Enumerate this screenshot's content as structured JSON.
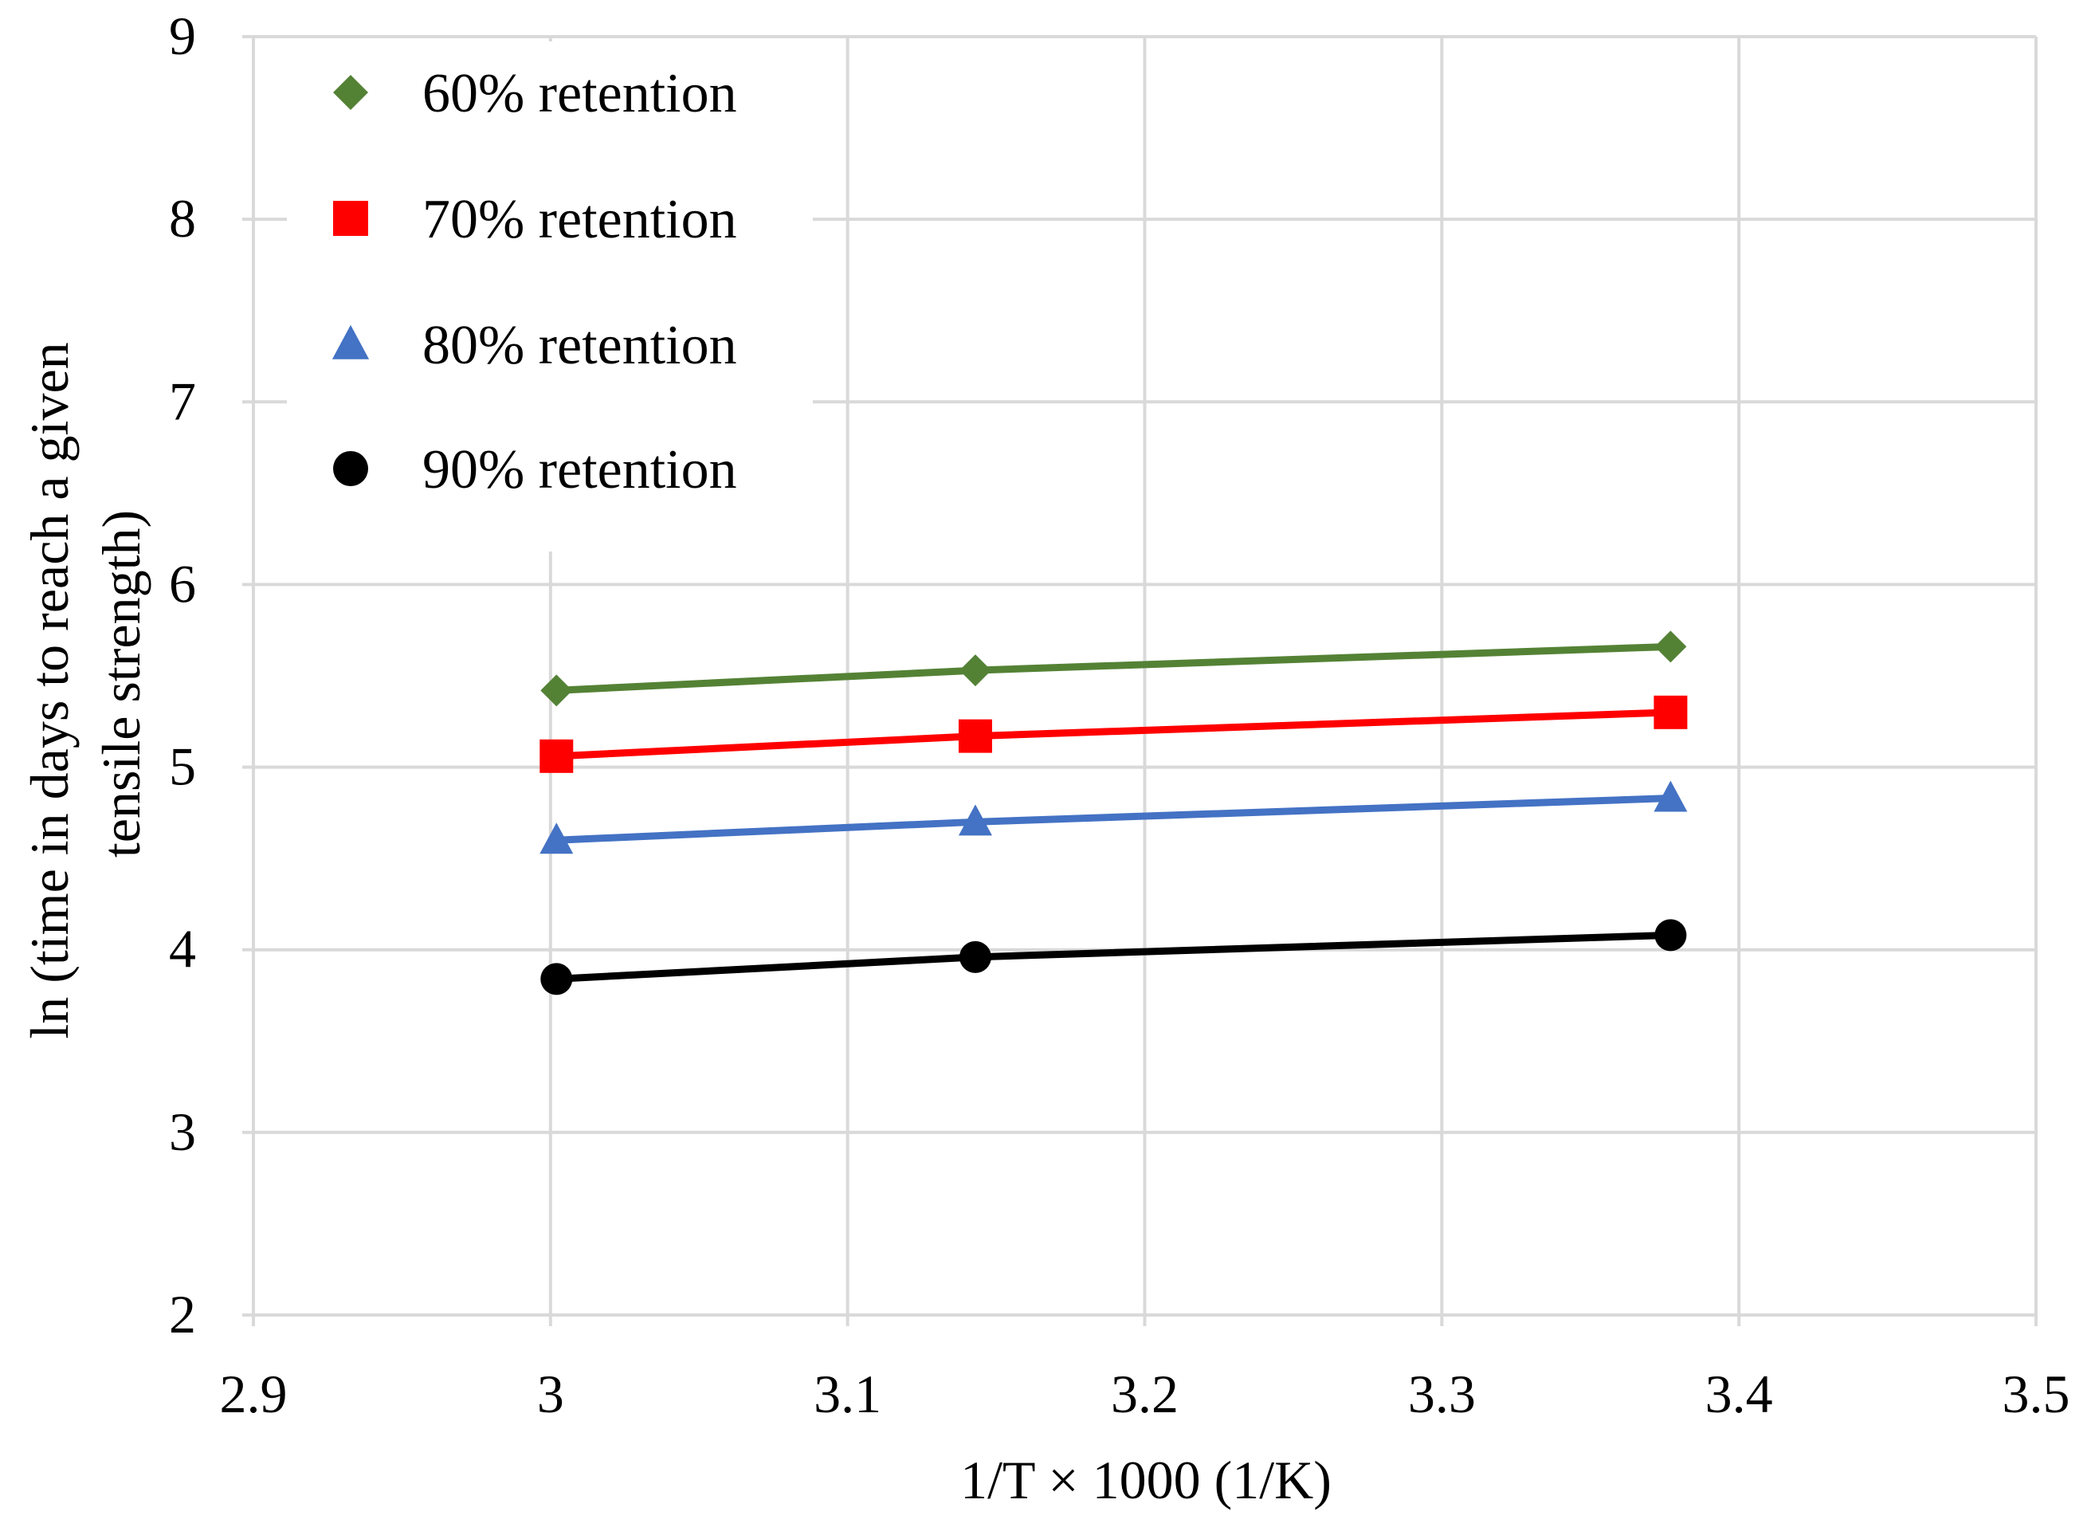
{
  "chart_data": {
    "type": "line",
    "title": "",
    "xlabel": "1/T × 1000 (1/K)",
    "ylabel_lines": [
      "ln (time in days to reach a given",
      "tensile strength)"
    ],
    "xlim": [
      2.9,
      3.5
    ],
    "ylim": [
      2,
      9
    ],
    "x_ticks": [
      2.9,
      3.0,
      3.1,
      3.2,
      3.3,
      3.4,
      3.5
    ],
    "x_tick_labels": [
      "2.9",
      "3",
      "3.1",
      "3.2",
      "3.3",
      "3.4",
      "3.5"
    ],
    "y_ticks": [
      2,
      3,
      4,
      5,
      6,
      7,
      8,
      9
    ],
    "y_tick_labels": [
      "2",
      "3",
      "4",
      "5",
      "6",
      "7",
      "8",
      "9"
    ],
    "grid": true,
    "legend_position": "top-left",
    "x": [
      3.002,
      3.143,
      3.377
    ],
    "series": [
      {
        "name": "60% retention",
        "values": [
          5.42,
          5.53,
          5.66
        ],
        "color": "#548235",
        "marker": "diamond"
      },
      {
        "name": "70% retention",
        "values": [
          5.06,
          5.17,
          5.3
        ],
        "color": "#ff0000",
        "marker": "square"
      },
      {
        "name": "80% retention",
        "values": [
          4.6,
          4.7,
          4.83
        ],
        "color": "#4472c4",
        "marker": "triangle"
      },
      {
        "name": "90% retention",
        "values": [
          3.84,
          3.96,
          4.08
        ],
        "color": "#000000",
        "marker": "circle"
      }
    ]
  }
}
